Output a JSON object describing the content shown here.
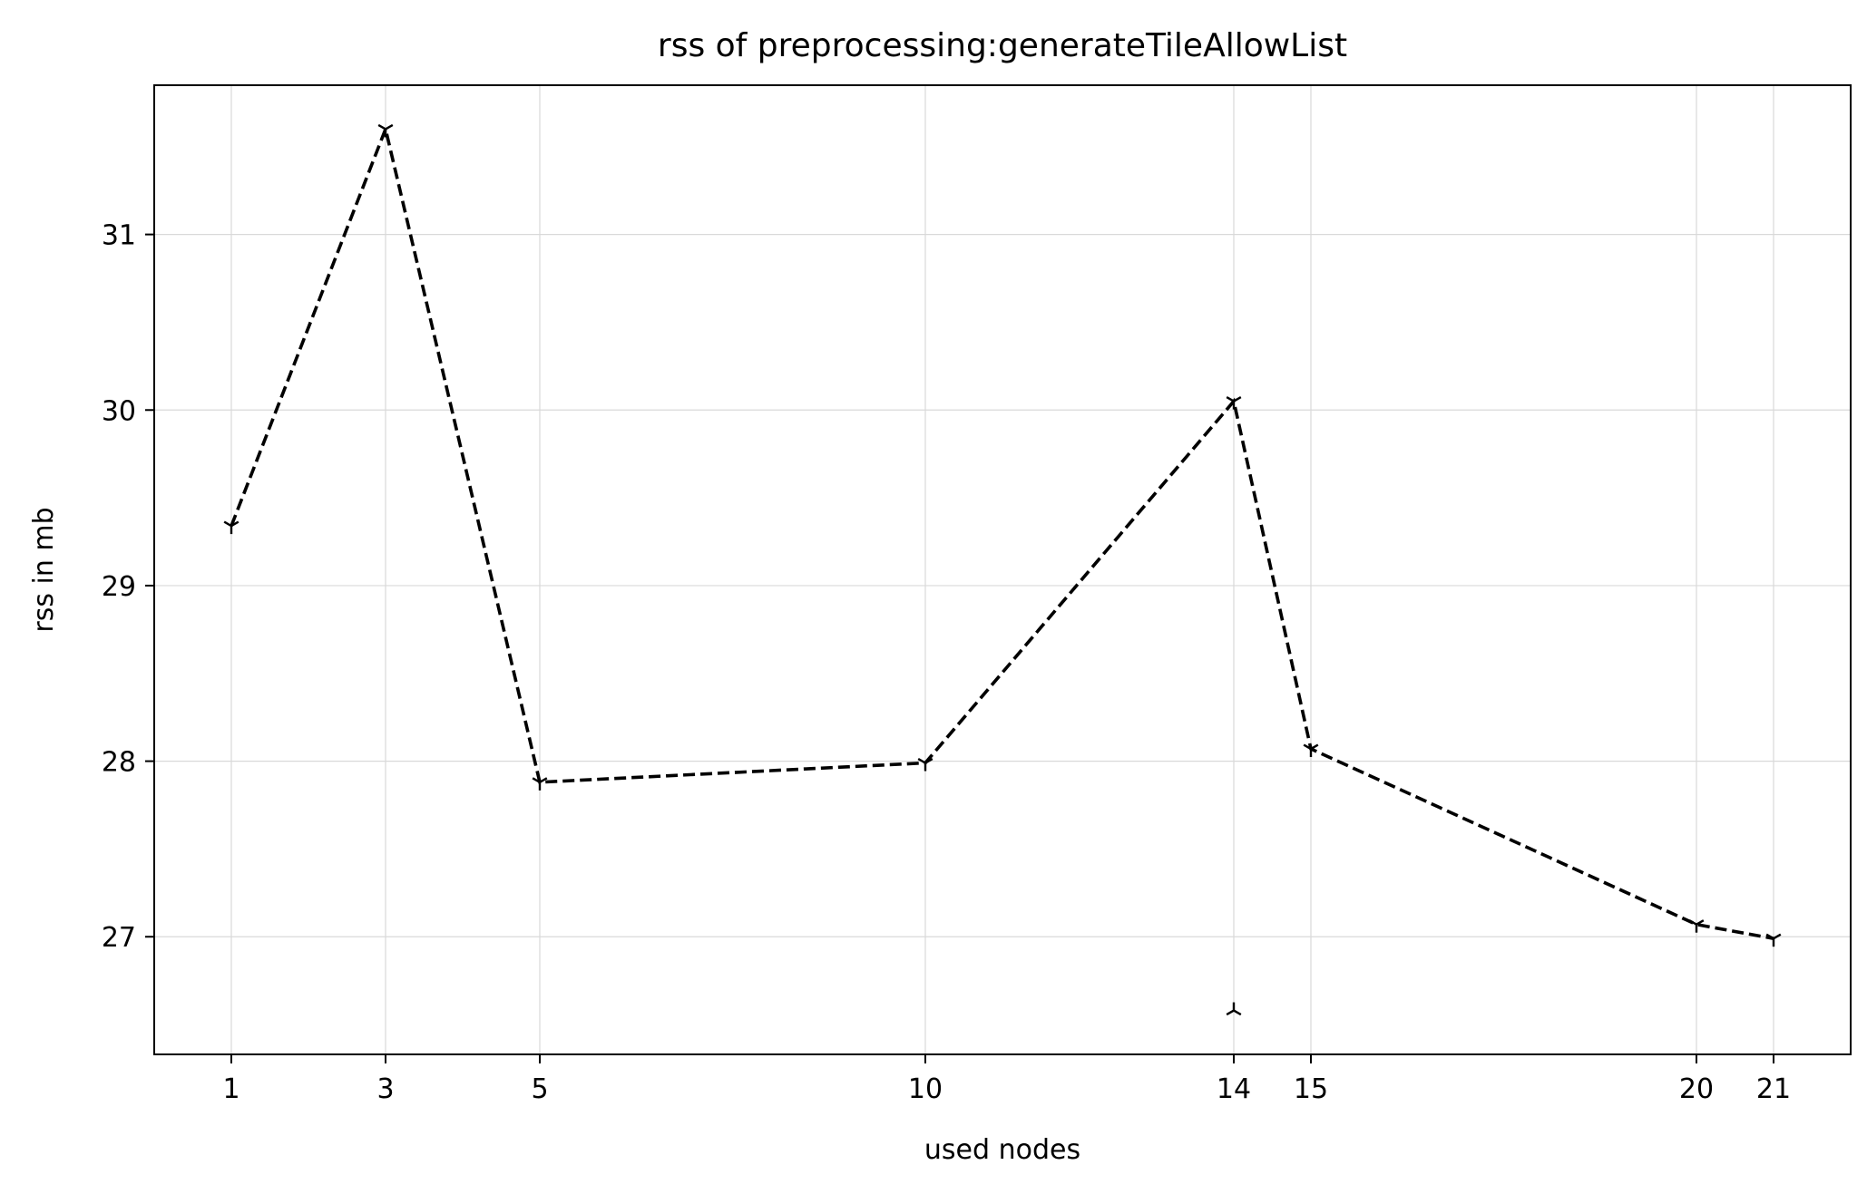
{
  "chart_data": {
    "type": "line",
    "title": "rss of preprocessing:generateTileAllowList",
    "xlabel": "used nodes",
    "ylabel": "rss in mb",
    "xlim": [
      0.0,
      22.0
    ],
    "ylim": [
      26.33,
      31.85
    ],
    "xticks": [
      1,
      3,
      5,
      10,
      14,
      15,
      20,
      21
    ],
    "yticks": [
      27,
      28,
      29,
      30,
      31
    ],
    "grid": true,
    "series": [
      {
        "line_style": "dashed",
        "color": "#000000",
        "marker": "tri_down",
        "points": [
          {
            "x": 1,
            "y": 29.34
          },
          {
            "x": 3,
            "y": 31.6
          },
          {
            "x": 5,
            "y": 27.88
          },
          {
            "x": 10,
            "y": 27.99
          },
          {
            "x": 14,
            "y": 30.05
          },
          {
            "x": 15,
            "y": 28.07
          },
          {
            "x": 20,
            "y": 27.07
          },
          {
            "x": 21,
            "y": 26.99
          }
        ]
      },
      {
        "line_style": "none",
        "color": "#000000",
        "marker": "tri_up",
        "points": [
          {
            "x": 14,
            "y": 26.58
          }
        ]
      }
    ]
  }
}
